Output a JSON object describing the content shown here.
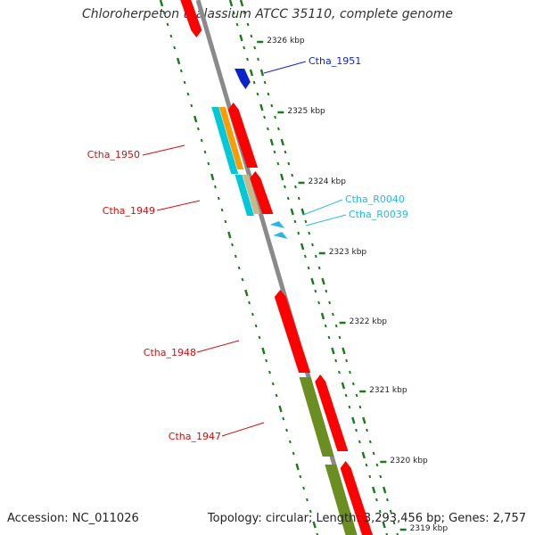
{
  "title": "Chloroherpeton thalassium ATCC 35110, complete genome",
  "footer": {
    "accession": "Accession: NC_011026",
    "summary": "Topology: circular; Length: 3,293,456 bp; Genes: 2,757"
  },
  "ticks": [
    "2326 kbp",
    "2325 kbp",
    "2324 kbp",
    "2323 kbp",
    "2322 kbp",
    "2321 kbp",
    "2320 kbp",
    "2319 kbp"
  ],
  "genes": [
    {
      "name": "Ctha_1951",
      "color": "#0b24c9"
    },
    {
      "name": "Ctha_1950",
      "color": "#d01010"
    },
    {
      "name": "Ctha_1949",
      "color": "#d01010"
    },
    {
      "name": "Ctha_R0040",
      "color": "#29b8e0"
    },
    {
      "name": "Ctha_R0039",
      "color": "#29b8e0"
    },
    {
      "name": "Ctha_1948",
      "color": "#d01010"
    },
    {
      "name": "Ctha_1947",
      "color": "#d01010"
    }
  ],
  "feature_colors": {
    "cds": "#ff0000",
    "cog_a": "#00c8d8",
    "cog_b": "#ff9a00",
    "cog_c": "#c8b88a",
    "cog_d": "#6b8e23",
    "rna": "#29b8e0",
    "backbone": "#8a8a8a",
    "gc_dots": "#1a7a1a"
  }
}
